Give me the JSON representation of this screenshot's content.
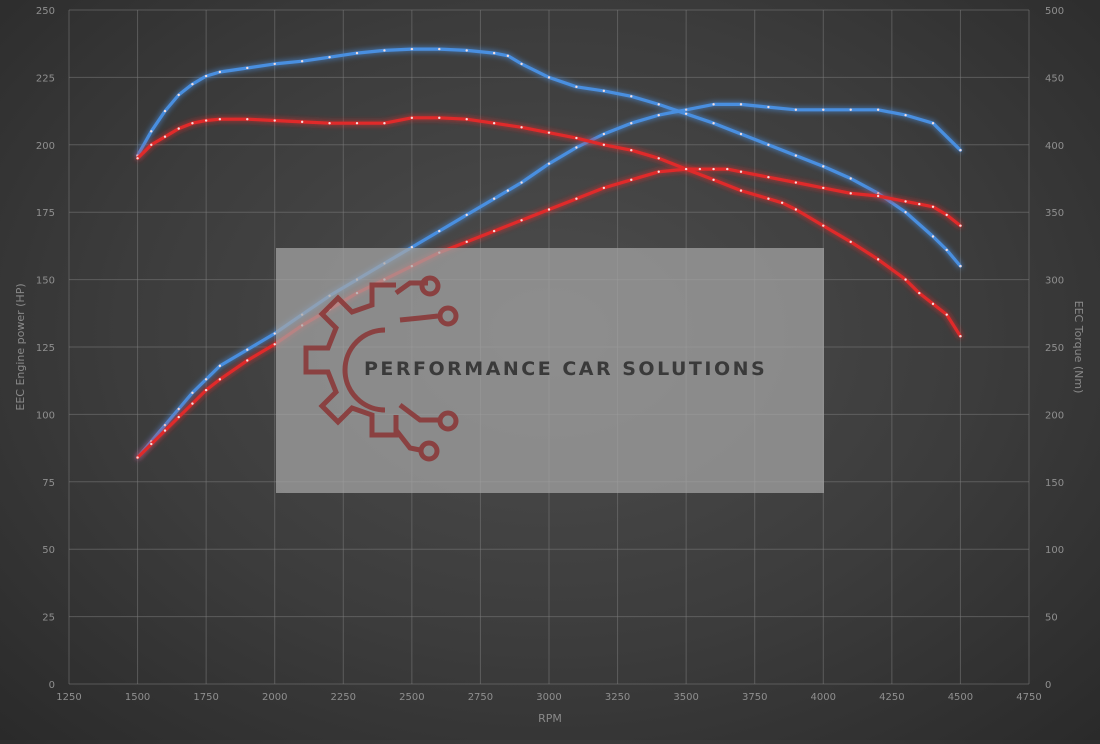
{
  "chart_data": {
    "type": "line",
    "xlabel": "RPM",
    "ylabel_left": "EEC Engine power (HP)",
    "ylabel_right": "EEC Torque (Nm)",
    "x_ticks": [
      1250,
      1500,
      1750,
      2000,
      2250,
      2500,
      2750,
      3000,
      3250,
      3500,
      3750,
      4000,
      4250,
      4500,
      4750
    ],
    "y_left_ticks": [
      0,
      25,
      50,
      75,
      100,
      125,
      150,
      175,
      200,
      225,
      250
    ],
    "y_right_ticks": [
      0,
      50,
      100,
      150,
      200,
      250,
      300,
      350,
      400,
      450,
      500
    ],
    "xlim": [
      1250,
      4750
    ],
    "ylim_left": [
      0,
      250
    ],
    "ylim_right": [
      0,
      500
    ],
    "grid": true,
    "watermark": "PERFORMANCE CAR SOLUTIONS",
    "colors": {
      "tuned": "#4a8fe0",
      "stock": "#e02a2a"
    },
    "series": [
      {
        "axis": "left",
        "group": "tuned",
        "x": [
          1500,
          1550,
          1600,
          1650,
          1700,
          1750,
          1800,
          1900,
          2000,
          2100,
          2200,
          2300,
          2400,
          2500,
          2600,
          2700,
          2800,
          2850,
          2900,
          3000,
          3100,
          3200,
          3300,
          3400,
          3500,
          3600,
          3700,
          3800,
          3900,
          4000,
          4100,
          4200,
          4300,
          4400,
          4500
        ],
        "values": [
          84,
          90,
          96,
          102,
          108,
          113,
          118,
          124,
          130,
          137,
          144,
          150,
          156,
          162,
          168,
          174,
          180,
          183,
          186,
          193,
          199,
          204,
          208,
          211,
          213,
          215,
          215,
          214,
          213,
          213,
          213,
          213,
          211,
          208,
          198
        ]
      },
      {
        "axis": "right",
        "group": "tuned",
        "x": [
          1500,
          1550,
          1600,
          1650,
          1700,
          1750,
          1800,
          1900,
          2000,
          2100,
          2200,
          2300,
          2400,
          2500,
          2600,
          2700,
          2800,
          2850,
          2900,
          3000,
          3100,
          3200,
          3300,
          3400,
          3500,
          3600,
          3700,
          3800,
          3900,
          4000,
          4100,
          4200,
          4300,
          4400,
          4450,
          4500
        ],
        "values": [
          392,
          410,
          425,
          437,
          445,
          451,
          454,
          457,
          460,
          462,
          465,
          468,
          470,
          471,
          471,
          470,
          468,
          466,
          460,
          450,
          443,
          440,
          436,
          430,
          423,
          416,
          408,
          400,
          392,
          384,
          375,
          364,
          350,
          332,
          322,
          310
        ]
      },
      {
        "axis": "left",
        "group": "stock",
        "x": [
          1500,
          1550,
          1600,
          1650,
          1700,
          1750,
          1800,
          1900,
          2000,
          2100,
          2200,
          2300,
          2400,
          2500,
          2600,
          2700,
          2800,
          2900,
          3000,
          3100,
          3200,
          3300,
          3400,
          3500,
          3550,
          3600,
          3650,
          3700,
          3800,
          3900,
          4000,
          4100,
          4200,
          4300,
          4350,
          4400,
          4450,
          4500
        ],
        "values": [
          84,
          89,
          94,
          99,
          104,
          109,
          113,
          120,
          126,
          133,
          139,
          145,
          150,
          155,
          160,
          164,
          168,
          172,
          176,
          180,
          184,
          187,
          190,
          191,
          191,
          191,
          191,
          190,
          188,
          186,
          184,
          182,
          181,
          179,
          178,
          177,
          174,
          170
        ]
      },
      {
        "axis": "right",
        "group": "stock",
        "x": [
          1500,
          1550,
          1600,
          1650,
          1700,
          1750,
          1800,
          1900,
          2000,
          2100,
          2200,
          2300,
          2400,
          2500,
          2600,
          2700,
          2800,
          2900,
          3000,
          3100,
          3200,
          3300,
          3400,
          3500,
          3600,
          3700,
          3800,
          3850,
          3900,
          4000,
          4100,
          4200,
          4300,
          4350,
          4400,
          4450,
          4500
        ],
        "values": [
          390,
          400,
          406,
          412,
          416,
          418,
          419,
          419,
          418,
          417,
          416,
          416,
          416,
          420,
          420,
          419,
          416,
          413,
          409,
          405,
          400,
          396,
          390,
          382,
          374,
          366,
          360,
          357,
          352,
          340,
          328,
          315,
          300,
          290,
          282,
          274,
          258
        ]
      }
    ]
  }
}
